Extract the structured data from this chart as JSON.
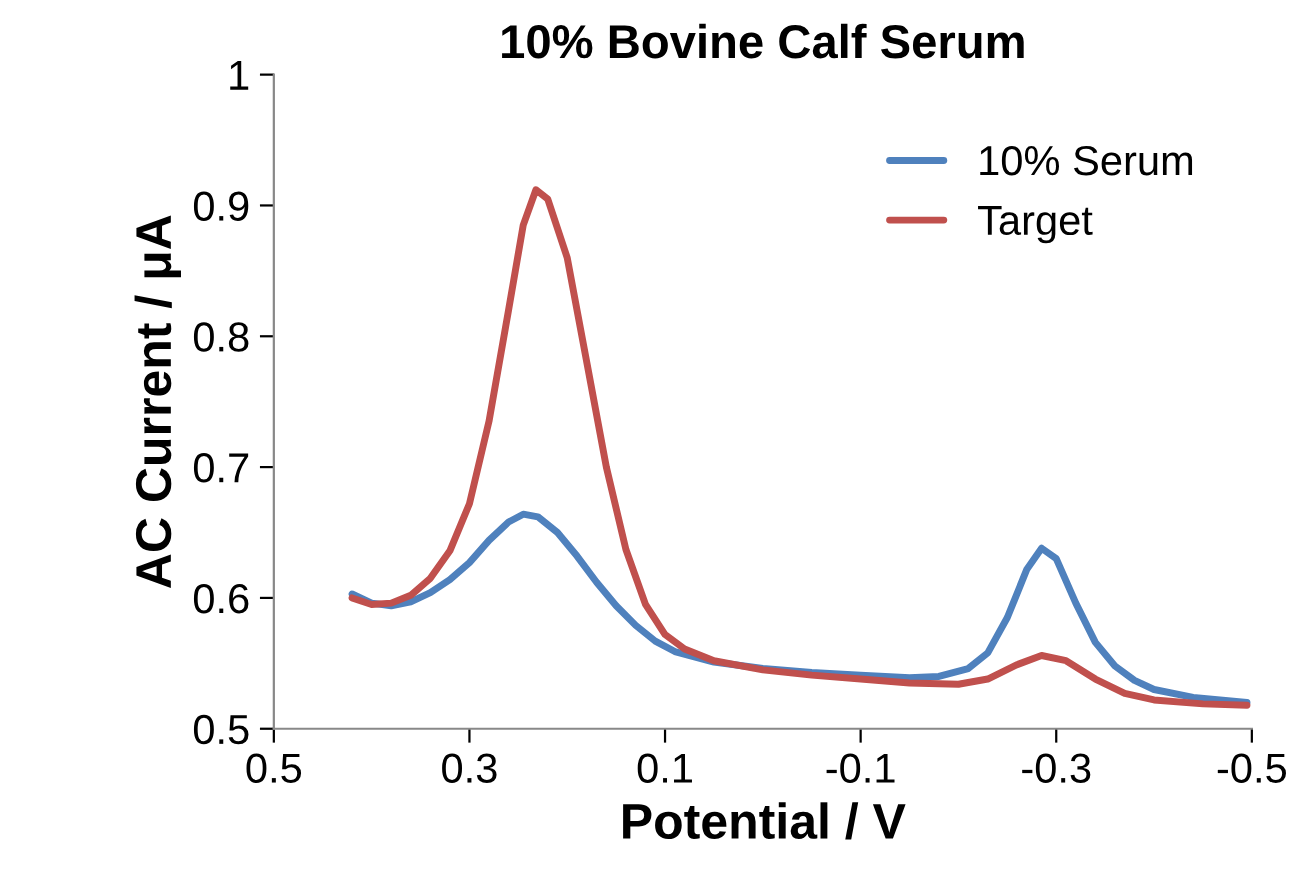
{
  "chart_data": {
    "type": "line",
    "title": "10% Bovine Calf Serum",
    "xlabel": "Potential / V",
    "ylabel": "AC Current / μA",
    "xlim": [
      0.5,
      -0.5
    ],
    "xticks": [
      0.5,
      0.3,
      0.1,
      -0.1,
      -0.3,
      -0.5
    ],
    "ylim": [
      0.5,
      1
    ],
    "yticks": [
      0.5,
      0.6,
      0.7,
      0.8,
      0.9,
      1
    ],
    "grid": false,
    "legend": "top right",
    "marker": "none",
    "line_style": "solid",
    "series": [
      {
        "name": "10% Serum",
        "color": "#4f81bd",
        "x": [
          0.42,
          0.4,
          0.38,
          0.36,
          0.34,
          0.32,
          0.3,
          0.28,
          0.26,
          0.245,
          0.23,
          0.21,
          0.19,
          0.17,
          0.15,
          0.13,
          0.11,
          0.09,
          0.05,
          0.0,
          -0.05,
          -0.1,
          -0.15,
          -0.18,
          -0.21,
          -0.23,
          -0.25,
          -0.27,
          -0.285,
          -0.3,
          -0.32,
          -0.34,
          -0.36,
          -0.38,
          -0.4,
          -0.44,
          -0.495
        ],
        "values": [
          0.603,
          0.596,
          0.594,
          0.597,
          0.604,
          0.614,
          0.627,
          0.644,
          0.658,
          0.664,
          0.662,
          0.65,
          0.632,
          0.612,
          0.594,
          0.579,
          0.567,
          0.559,
          0.551,
          0.546,
          0.543,
          0.541,
          0.539,
          0.54,
          0.546,
          0.558,
          0.585,
          0.622,
          0.638,
          0.63,
          0.596,
          0.566,
          0.548,
          0.537,
          0.53,
          0.524,
          0.52
        ]
      },
      {
        "name": "Target",
        "color": "#c0504d",
        "x": [
          0.42,
          0.4,
          0.38,
          0.36,
          0.34,
          0.32,
          0.3,
          0.28,
          0.26,
          0.245,
          0.232,
          0.22,
          0.2,
          0.18,
          0.16,
          0.14,
          0.12,
          0.1,
          0.08,
          0.05,
          0.0,
          -0.05,
          -0.1,
          -0.15,
          -0.2,
          -0.23,
          -0.26,
          -0.285,
          -0.31,
          -0.34,
          -0.37,
          -0.4,
          -0.45,
          -0.495
        ],
        "values": [
          0.6,
          0.595,
          0.596,
          0.602,
          0.615,
          0.636,
          0.672,
          0.735,
          0.82,
          0.885,
          0.912,
          0.905,
          0.86,
          0.78,
          0.7,
          0.637,
          0.595,
          0.572,
          0.561,
          0.552,
          0.545,
          0.541,
          0.538,
          0.535,
          0.534,
          0.538,
          0.549,
          0.556,
          0.552,
          0.538,
          0.527,
          0.522,
          0.519,
          0.518
        ]
      }
    ]
  }
}
